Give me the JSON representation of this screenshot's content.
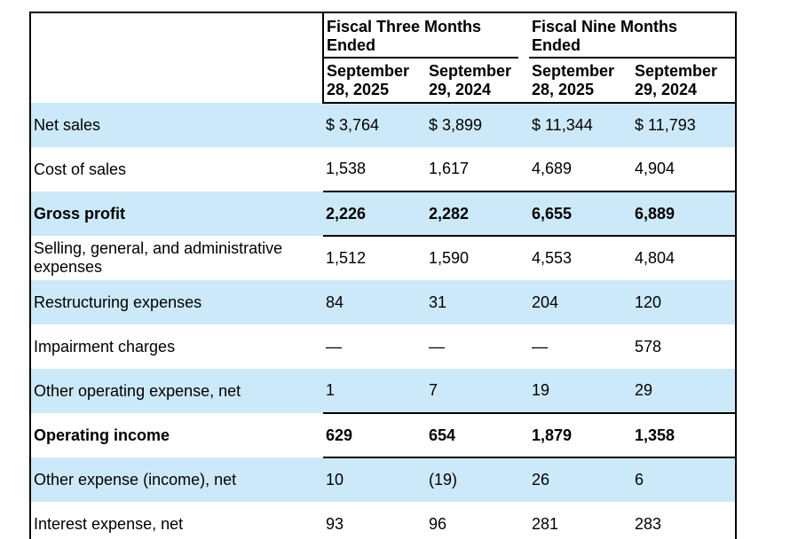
{
  "table": {
    "col_groups": [
      {
        "label": "Fiscal Three Months Ended"
      },
      {
        "label": "Fiscal Nine Months Ended"
      }
    ],
    "columns": [
      "September 28, 2025",
      "September 29, 2024",
      "September 28, 2025",
      "September 29, 2024"
    ],
    "rows": [
      {
        "label": "Net sales",
        "values": [
          "$ 3,764",
          "$ 3,899",
          "$ 11,344",
          "$ 11,793"
        ],
        "bold": false,
        "shaded": true,
        "topline": false
      },
      {
        "label": "Cost of sales",
        "values": [
          "1,538",
          "1,617",
          "4,689",
          "4,904"
        ],
        "bold": false,
        "shaded": false,
        "topline": false
      },
      {
        "label": "Gross profit",
        "values": [
          "2,226",
          "2,282",
          "6,655",
          "6,889"
        ],
        "bold": true,
        "shaded": true,
        "topline": true
      },
      {
        "label": "Selling, general, and administrative expenses",
        "values": [
          "1,512",
          "1,590",
          "4,553",
          "4,804"
        ],
        "bold": false,
        "shaded": false,
        "topline": true
      },
      {
        "label": "Restructuring expenses",
        "values": [
          "84",
          "31",
          "204",
          "120"
        ],
        "bold": false,
        "shaded": true,
        "topline": false
      },
      {
        "label": "Impairment charges",
        "values": [
          "—",
          "—",
          "—",
          "578"
        ],
        "bold": false,
        "shaded": false,
        "topline": false
      },
      {
        "label": "Other operating expense, net",
        "values": [
          "1",
          "7",
          "19",
          "29"
        ],
        "bold": false,
        "shaded": true,
        "topline": false
      },
      {
        "label": "Operating income",
        "values": [
          "629",
          "654",
          "1,879",
          "1,358"
        ],
        "bold": true,
        "shaded": false,
        "topline": true
      },
      {
        "label": "Other expense (income), net",
        "values": [
          "10",
          "(19)",
          "26",
          "6"
        ],
        "bold": false,
        "shaded": true,
        "topline": true
      },
      {
        "label": "Interest expense, net",
        "values": [
          "93",
          "96",
          "281",
          "283"
        ],
        "bold": false,
        "shaded": false,
        "topline": false
      }
    ],
    "colors": {
      "row_shade": "#cce9f9",
      "border": "#000000",
      "text": "#000000",
      "background": "#ffffff"
    }
  }
}
